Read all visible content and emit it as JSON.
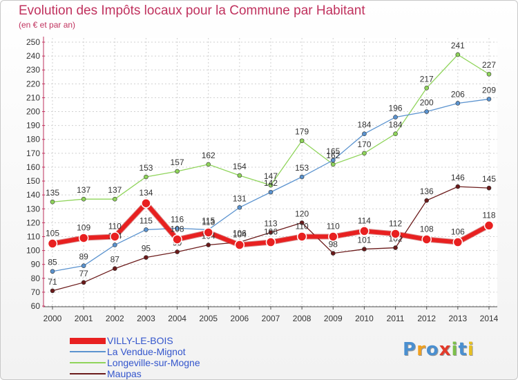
{
  "chart_data": {
    "type": "line",
    "title": "Evolution des Impôts locaux pour la Commune par Habitant",
    "subtitle": "(en € et par an)",
    "xlabel": "",
    "ylabel": "",
    "x": [
      "2000",
      "2001",
      "2002",
      "2003",
      "2004",
      "2005",
      "2006",
      "2007",
      "2008",
      "2009",
      "2010",
      "2011",
      "2012",
      "2013",
      "2014"
    ],
    "ylim": [
      60,
      250
    ],
    "yticks": [
      60,
      70,
      80,
      90,
      100,
      110,
      120,
      130,
      140,
      150,
      160,
      170,
      180,
      190,
      200,
      210,
      220,
      230,
      240,
      250
    ],
    "grid": true,
    "legend_position": "bottom-left",
    "series": [
      {
        "name": "Maupas",
        "color": "#6b1a1a",
        "values": [
          71,
          77,
          87,
          95,
          99,
          104,
          106,
          113,
          120,
          98,
          101,
          102,
          136,
          146,
          145
        ]
      },
      {
        "name": "Longeville-sur-Mogne",
        "color": "#8fd45a",
        "values": [
          135,
          137,
          137,
          153,
          157,
          162,
          154,
          147,
          179,
          162,
          170,
          184,
          217,
          241,
          227
        ]
      },
      {
        "name": "La Vendue-Mignot",
        "color": "#5b93cf",
        "values": [
          85,
          89,
          104,
          115,
          116,
          115,
          131,
          142,
          153,
          165,
          184,
          196,
          200,
          206,
          209
        ]
      },
      {
        "name": "VILLY-LE-BOIS",
        "color": "#e82020",
        "values": [
          105,
          109,
          110,
          134,
          108,
          113,
          104,
          106,
          110,
          110,
          114,
          112,
          108,
          106,
          118
        ]
      }
    ]
  },
  "legend": {
    "items": [
      {
        "label": "VILLY-LE-BOIS",
        "color": "#e82020",
        "thick": true
      },
      {
        "label": "La Vendue-Mignot",
        "color": "#5b93cf",
        "thick": false
      },
      {
        "label": "Longeville-sur-Mogne",
        "color": "#8fd45a",
        "thick": false
      },
      {
        "label": "Maupas",
        "color": "#6b1a1a",
        "thick": false
      }
    ]
  },
  "logo": {
    "letters": [
      "P",
      "r",
      "o",
      "x",
      "i",
      "t",
      "i"
    ],
    "colors": [
      "#4a8fd0",
      "#f0a020",
      "#4a8fd0",
      "#e23a2a",
      "#7cc04a",
      "#4a8fd0",
      "#e8c020"
    ]
  }
}
